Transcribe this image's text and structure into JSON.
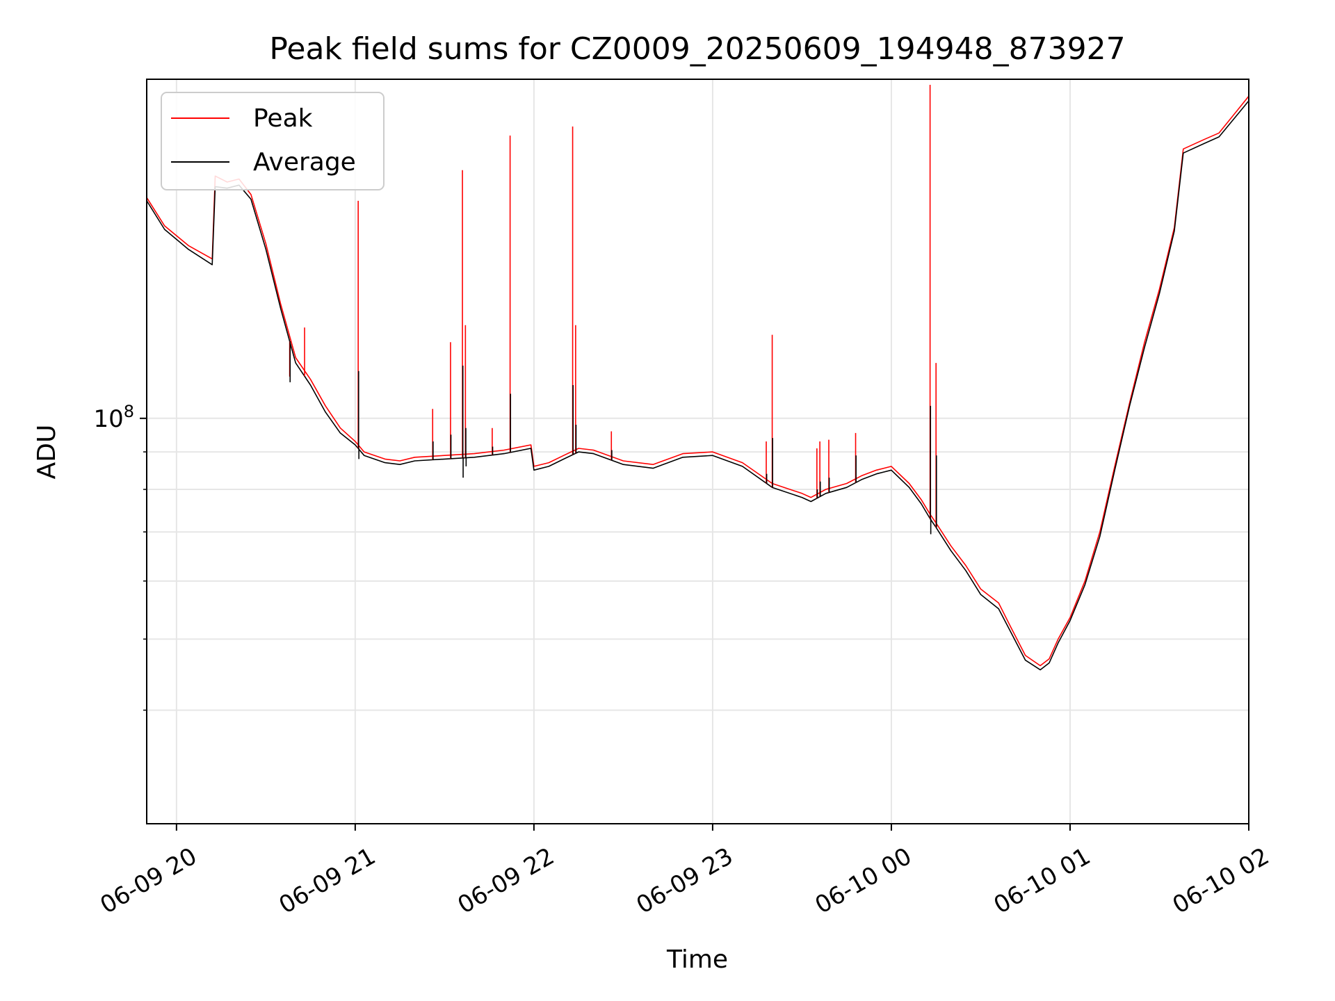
{
  "chart_data": {
    "type": "line",
    "title": "Peak field sums for CZ0009_20250609_194948_873927",
    "xlabel": "Time",
    "ylabel": "ADU",
    "x_type": "datetime",
    "xlim": [
      "2025-06-09T19:50",
      "2025-06-10T02:00"
    ],
    "ylim": [
      28000000,
      290000000
    ],
    "y_scale": "log",
    "x_ticks": [
      "06-09 20",
      "06-09 21",
      "06-09 22",
      "06-09 23",
      "06-10 00",
      "06-10 01",
      "06-10 02"
    ],
    "x_tick_times": [
      "2025-06-09T20:00",
      "2025-06-09T21:00",
      "2025-06-09T22:00",
      "2025-06-09T23:00",
      "2025-06-10T00:00",
      "2025-06-10T01:00",
      "2025-06-10T02:00"
    ],
    "y_major_ticks": [
      {
        "value": 100000000,
        "base": "10",
        "exp": "8"
      }
    ],
    "y_minor_ticks": [
      40000000,
      50000000,
      60000000,
      70000000,
      80000000,
      90000000
    ],
    "grid": true,
    "legend": {
      "placement": "top-left"
    },
    "series": [
      {
        "name": "Peak",
        "color": "#ff0000",
        "x": [
          "2025-06-09T19:50",
          "2025-06-09T19:56",
          "2025-06-09T20:04",
          "2025-06-09T20:12",
          "2025-06-09T20:13",
          "2025-06-09T20:17",
          "2025-06-09T20:21",
          "2025-06-09T20:25",
          "2025-06-09T20:30",
          "2025-06-09T20:35",
          "2025-06-09T20:40",
          "2025-06-09T20:45",
          "2025-06-09T20:50",
          "2025-06-09T20:55",
          "2025-06-09T21:00",
          "2025-06-09T21:03",
          "2025-06-09T21:10",
          "2025-06-09T21:15",
          "2025-06-09T21:20",
          "2025-06-09T21:30",
          "2025-06-09T21:40",
          "2025-06-09T21:50",
          "2025-06-09T21:59",
          "2025-06-09T22:00",
          "2025-06-09T22:05",
          "2025-06-09T22:10",
          "2025-06-09T22:15",
          "2025-06-09T22:20",
          "2025-06-09T22:30",
          "2025-06-09T22:40",
          "2025-06-09T22:50",
          "2025-06-09T23:00",
          "2025-06-09T23:10",
          "2025-06-09T23:20",
          "2025-06-09T23:30",
          "2025-06-09T23:33",
          "2025-06-09T23:38",
          "2025-06-09T23:45",
          "2025-06-09T23:50",
          "2025-06-09T23:55",
          "2025-06-10T00:00",
          "2025-06-10T00:06",
          "2025-06-10T00:10",
          "2025-06-10T00:13",
          "2025-06-10T00:15",
          "2025-06-10T00:20",
          "2025-06-10T00:25",
          "2025-06-10T00:30",
          "2025-06-10T00:36",
          "2025-06-10T00:40",
          "2025-06-10T00:45",
          "2025-06-10T00:50",
          "2025-06-10T00:53",
          "2025-06-10T00:56",
          "2025-06-10T01:00",
          "2025-06-10T01:05",
          "2025-06-10T01:10",
          "2025-06-10T01:15",
          "2025-06-10T01:20",
          "2025-06-10T01:25",
          "2025-06-10T01:30",
          "2025-06-10T01:35",
          "2025-06-10T01:38",
          "2025-06-10T01:45",
          "2025-06-10T01:50",
          "2025-06-10T02:00"
        ],
        "y": [
          200000000,
          183000000,
          172000000,
          165000000,
          214000000,
          210000000,
          212000000,
          202000000,
          173000000,
          143000000,
          121000000,
          113000000,
          104000000,
          97000000,
          93000000,
          90000000,
          88000000,
          87500000,
          88500000,
          89000000,
          89500000,
          90500000,
          92000000,
          86000000,
          87000000,
          89000000,
          91000000,
          90500000,
          87500000,
          86500000,
          89500000,
          90000000,
          87000000,
          81500000,
          79000000,
          78000000,
          80000000,
          81500000,
          83500000,
          85000000,
          86000000,
          81500000,
          77500000,
          74000000,
          72000000,
          67000000,
          63000000,
          58500000,
          56000000,
          52000000,
          47500000,
          46000000,
          47000000,
          50000000,
          53500000,
          60000000,
          70000000,
          86000000,
          105000000,
          127000000,
          150000000,
          182000000,
          233000000,
          240000000,
          245000000,
          275000000
        ]
      },
      {
        "name": "Average",
        "color": "#000000",
        "x": [
          "2025-06-09T19:50",
          "2025-06-09T19:56",
          "2025-06-09T20:04",
          "2025-06-09T20:12",
          "2025-06-09T20:13",
          "2025-06-09T20:17",
          "2025-06-09T20:21",
          "2025-06-09T20:25",
          "2025-06-09T20:30",
          "2025-06-09T20:35",
          "2025-06-09T20:40",
          "2025-06-09T20:45",
          "2025-06-09T20:50",
          "2025-06-09T20:55",
          "2025-06-09T21:00",
          "2025-06-09T21:03",
          "2025-06-09T21:10",
          "2025-06-09T21:15",
          "2025-06-09T21:20",
          "2025-06-09T21:30",
          "2025-06-09T21:40",
          "2025-06-09T21:50",
          "2025-06-09T21:59",
          "2025-06-09T22:00",
          "2025-06-09T22:05",
          "2025-06-09T22:10",
          "2025-06-09T22:15",
          "2025-06-09T22:20",
          "2025-06-09T22:30",
          "2025-06-09T22:40",
          "2025-06-09T22:50",
          "2025-06-09T23:00",
          "2025-06-09T23:10",
          "2025-06-09T23:20",
          "2025-06-09T23:30",
          "2025-06-09T23:33",
          "2025-06-09T23:38",
          "2025-06-09T23:45",
          "2025-06-09T23:50",
          "2025-06-09T23:55",
          "2025-06-10T00:00",
          "2025-06-10T00:06",
          "2025-06-10T00:10",
          "2025-06-10T00:13",
          "2025-06-10T00:15",
          "2025-06-10T00:20",
          "2025-06-10T00:25",
          "2025-06-10T00:30",
          "2025-06-10T00:36",
          "2025-06-10T00:40",
          "2025-06-10T00:45",
          "2025-06-10T00:50",
          "2025-06-10T00:53",
          "2025-06-10T00:56",
          "2025-06-10T01:00",
          "2025-06-10T01:05",
          "2025-06-10T01:10",
          "2025-06-10T01:15",
          "2025-06-10T01:20",
          "2025-06-10T01:25",
          "2025-06-10T01:30",
          "2025-06-10T01:35",
          "2025-06-10T01:38",
          "2025-06-10T01:45",
          "2025-06-10T01:50",
          "2025-06-10T02:00"
        ],
        "y": [
          198000000,
          181000000,
          170000000,
          162000000,
          207000000,
          206000000,
          208000000,
          199000000,
          170000000,
          141000000,
          119000000,
          111000000,
          102000000,
          95500000,
          92000000,
          89000000,
          87000000,
          86500000,
          87500000,
          88000000,
          88500000,
          89500000,
          91000000,
          85000000,
          86000000,
          88000000,
          90000000,
          89500000,
          86500000,
          85500000,
          88500000,
          89000000,
          86000000,
          80500000,
          78000000,
          77000000,
          79000000,
          80500000,
          82500000,
          84000000,
          85000000,
          80500000,
          76500000,
          73000000,
          71000000,
          66000000,
          62000000,
          57500000,
          55000000,
          51200000,
          46800000,
          45400000,
          46400000,
          49400000,
          53000000,
          59300000,
          69000000,
          85000000,
          104000000,
          125000000,
          148000000,
          180000000,
          230000000,
          237000000,
          242000000,
          271000000
        ]
      }
    ],
    "spikes": [
      {
        "time": "2025-06-09T20:38",
        "peak": 114000000,
        "average": 112000000
      },
      {
        "time": "2025-06-09T20:43",
        "peak": 133000000,
        "average": 114000000
      },
      {
        "time": "2025-06-09T21:01",
        "peak": 198000000,
        "average": 116000000
      },
      {
        "time": "2025-06-09T21:26",
        "peak": 103000000,
        "average": 93000000
      },
      {
        "time": "2025-06-09T21:32",
        "peak": 127000000,
        "average": 95000000
      },
      {
        "time": "2025-06-09T21:36",
        "peak": 218000000,
        "average": 118000000
      },
      {
        "time": "2025-06-09T21:37",
        "peak": 134000000,
        "average": 97000000
      },
      {
        "time": "2025-06-09T21:46",
        "peak": 97000000,
        "average": 91500000
      },
      {
        "time": "2025-06-09T21:52",
        "peak": 243000000,
        "average": 108000000
      },
      {
        "time": "2025-06-09T22:13",
        "peak": 250000000,
        "average": 111000000
      },
      {
        "time": "2025-06-09T22:14",
        "peak": 134000000,
        "average": 98000000
      },
      {
        "time": "2025-06-09T22:26",
        "peak": 96000000,
        "average": 90500000
      },
      {
        "time": "2025-06-09T23:18",
        "peak": 93000000,
        "average": 84000000
      },
      {
        "time": "2025-06-09T23:20",
        "peak": 130000000,
        "average": 94000000
      },
      {
        "time": "2025-06-09T23:35",
        "peak": 91000000,
        "average": 80000000
      },
      {
        "time": "2025-06-09T23:36",
        "peak": 93000000,
        "average": 82000000
      },
      {
        "time": "2025-06-09T23:39",
        "peak": 93500000,
        "average": 83000000
      },
      {
        "time": "2025-06-09T23:48",
        "peak": 95500000,
        "average": 89000000
      },
      {
        "time": "2025-06-10T00:13",
        "peak": 285000000,
        "average": 104000000
      },
      {
        "time": "2025-06-10T00:15",
        "peak": 119000000,
        "average": 89000000
      }
    ],
    "dips": [
      {
        "time": "2025-06-09T21:01",
        "average": 88000000
      },
      {
        "time": "2025-06-09T21:36",
        "average": 83000000
      },
      {
        "time": "2025-06-09T21:37",
        "average": 86000000
      },
      {
        "time": "2025-06-10T00:13",
        "average": 69500000
      }
    ]
  }
}
